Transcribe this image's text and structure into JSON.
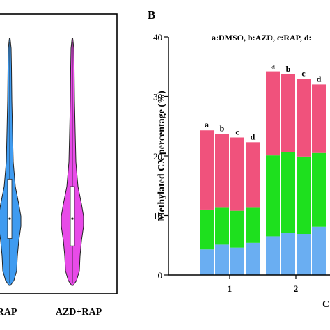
{
  "colors": {
    "pink": "#F0527C",
    "green": "#1EE01E",
    "blue": "#6AAEF2",
    "violin_blue": "#3F9BF0",
    "violin_magenta": "#E84BE8",
    "frame": "#000000"
  },
  "chart_data": [
    {
      "type": "violin",
      "panel_label": "",
      "categories": [
        "RAP",
        "AZD+RAP"
      ],
      "category_label_prefix_visible": [
        "…RAP"
      ],
      "series": [
        {
          "name": "RAP",
          "color": "violin_blue",
          "median": 0.27,
          "q1": 0.19,
          "q3": 0.43,
          "min": 0.0,
          "max": 1.0
        },
        {
          "name": "AZD+RAP",
          "color": "violin_magenta",
          "median": 0.27,
          "q1": 0.16,
          "q3": 0.4,
          "min": 0.0,
          "max": 1.0
        }
      ],
      "xtick_labels": [
        "RAP",
        "AZD+RAP"
      ]
    },
    {
      "type": "bar",
      "stacked": true,
      "panel_label": "B",
      "legend_text": "a:DMSO, b:AZD, c:RAP, d:",
      "ylabel": "Methylated CX percentage (%)",
      "xlabel_partial": "C",
      "ylim": [
        0,
        40
      ],
      "yticks": [
        0,
        10,
        20,
        30,
        40
      ],
      "groups": [
        "1",
        "2"
      ],
      "bar_labels": [
        "a",
        "b",
        "c",
        "d"
      ],
      "stack_order": [
        "blue",
        "green",
        "pink"
      ],
      "bars": [
        {
          "group": "1",
          "label": "a",
          "blue": 4.3,
          "green": 6.7,
          "pink": 13.3,
          "total": 24.3
        },
        {
          "group": "1",
          "label": "b",
          "blue": 5.1,
          "green": 6.2,
          "pink": 12.4,
          "total": 23.7
        },
        {
          "group": "1",
          "label": "c",
          "blue": 4.6,
          "green": 6.2,
          "pink": 12.3,
          "total": 23.1
        },
        {
          "group": "1",
          "label": "d",
          "blue": 5.4,
          "green": 5.9,
          "pink": 11.0,
          "total": 22.3
        },
        {
          "group": "2",
          "label": "a",
          "blue": 6.5,
          "green": 13.6,
          "pink": 14.1,
          "total": 34.2
        },
        {
          "group": "2",
          "label": "b",
          "blue": 7.1,
          "green": 13.5,
          "pink": 13.1,
          "total": 33.7
        },
        {
          "group": "2",
          "label": "c",
          "blue": 6.9,
          "green": 13.0,
          "pink": 13.0,
          "total": 32.9
        },
        {
          "group": "2",
          "label": "d",
          "blue": 8.1,
          "green": 12.4,
          "pink": 11.5,
          "total": 32.0
        }
      ]
    }
  ]
}
